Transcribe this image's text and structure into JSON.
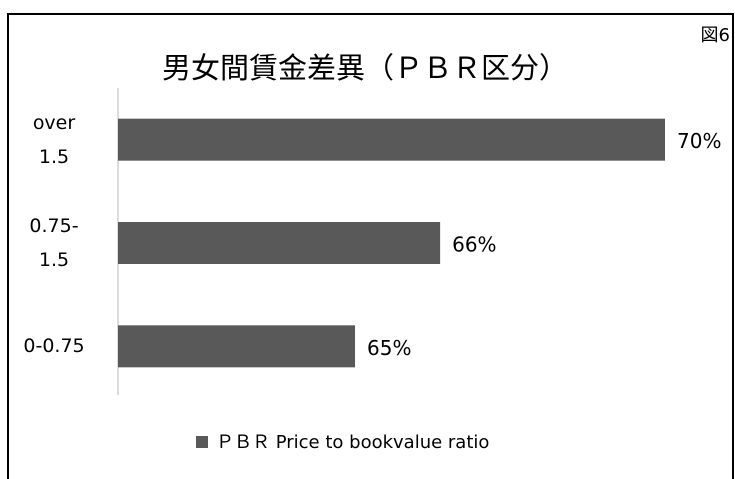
{
  "chart_data": {
    "type": "bar",
    "orientation": "horizontal",
    "title": "男女間賃金差異（ＰＢＲ区分）",
    "corner_label": "図6",
    "categories": [
      "over\n1.5",
      "0.75-\n1.5",
      "0-0.75"
    ],
    "series": [
      {
        "name": "ＰＢＲ Price to bookvalue ratio",
        "color": "#595959",
        "values": [
          70,
          66.3,
          64.9
        ],
        "value_labels": [
          "70%",
          "66%",
          "65%"
        ]
      }
    ],
    "xlim": [
      61,
      70
    ],
    "legend": "bottom"
  }
}
